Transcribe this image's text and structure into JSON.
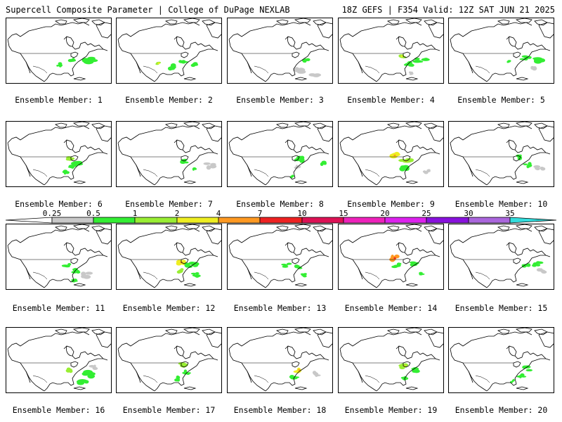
{
  "header": {
    "left": "Supercell Composite Parameter | College of DuPage NEXLAB",
    "right": "18Z GEFS | F354 Valid: 12Z SAT JUN 21 2025"
  },
  "colorbar": {
    "labels": [
      "0.25",
      "0.5",
      "1",
      "2",
      "4",
      "7",
      "10",
      "15",
      "20",
      "25",
      "30",
      "35"
    ],
    "colors": [
      "#c8c8c8",
      "#33ee33",
      "#99ee33",
      "#eeee22",
      "#ff9922",
      "#ee2222",
      "#dd1155",
      "#ee22bb",
      "#dd22ee",
      "#8811dd",
      "#aa66dd",
      "#33dddd"
    ]
  },
  "map_style": {
    "land": "#ffffff",
    "coast": "#000000",
    "precip_colors": [
      "#c8c8c8",
      "#33ee33",
      "#99ee33",
      "#eeee22",
      "#ff9922",
      "#ee2222"
    ]
  },
  "members": [
    {
      "caption": "Ensemble Member: 1"
    },
    {
      "caption": "Ensemble Member: 2"
    },
    {
      "caption": "Ensemble Member: 3"
    },
    {
      "caption": "Ensemble Member: 4"
    },
    {
      "caption": "Ensemble Member: 5"
    },
    {
      "caption": "Ensemble Member: 6"
    },
    {
      "caption": "Ensemble Member: 7"
    },
    {
      "caption": "Ensemble Member: 8"
    },
    {
      "caption": "Ensemble Member: 9"
    },
    {
      "caption": "Ensemble Member: 10"
    },
    {
      "caption": "Ensemble Member: 11"
    },
    {
      "caption": "Ensemble Member: 12"
    },
    {
      "caption": "Ensemble Member: 13"
    },
    {
      "caption": "Ensemble Member: 14"
    },
    {
      "caption": "Ensemble Member: 15"
    },
    {
      "caption": "Ensemble Member: 16"
    },
    {
      "caption": "Ensemble Member: 17"
    },
    {
      "caption": "Ensemble Member: 18"
    },
    {
      "caption": "Ensemble Member: 19"
    },
    {
      "caption": "Ensemble Member: 20"
    }
  ]
}
